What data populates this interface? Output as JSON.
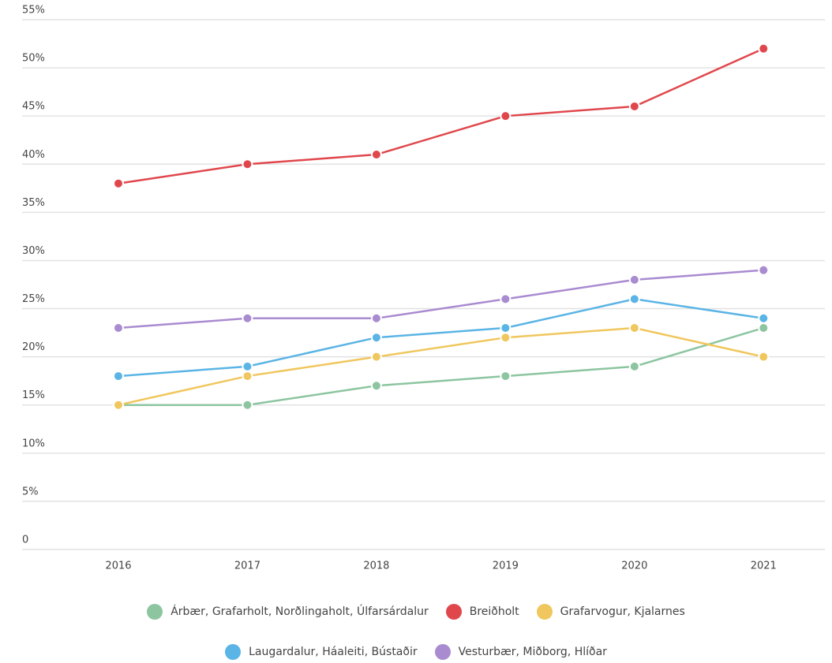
{
  "chart_data": {
    "type": "line",
    "categories": [
      "2016",
      "2017",
      "2018",
      "2019",
      "2020",
      "2021"
    ],
    "series": [
      {
        "name": "Árbær, Grafarholt, Norðlingaholt, Úlfarsárdalur",
        "color": "#8cc5a0",
        "values": [
          15,
          15,
          17,
          18,
          19,
          23
        ]
      },
      {
        "name": "Breiðholt",
        "color": "#e0474c",
        "values": [
          38,
          40,
          41,
          45,
          46,
          52
        ]
      },
      {
        "name": "Grafarvogur, Kjalarnes",
        "color": "#f0c75e",
        "values": [
          15,
          18,
          20,
          22,
          23,
          20
        ]
      },
      {
        "name": "Laugardalur, Háaleiti, Bústaðir",
        "color": "#5ab4e5",
        "values": [
          18,
          19,
          22,
          23,
          26,
          24
        ]
      },
      {
        "name": "Vesturbær, Miðborg, Hlíðar",
        "color": "#a98bd0",
        "values": [
          23,
          24,
          24,
          26,
          28,
          29
        ]
      }
    ],
    "ylim": [
      0,
      55
    ],
    "yticks": [
      0,
      {
        "value": 5,
        "label": "5%"
      },
      {
        "value": 10,
        "label": "10%"
      },
      {
        "value": 15,
        "label": "15%"
      },
      {
        "value": 20,
        "label": "20%"
      },
      {
        "value": 25,
        "label": "25%"
      },
      {
        "value": 30,
        "label": "30%"
      },
      {
        "value": 35,
        "label": "35%"
      },
      {
        "value": 40,
        "label": "40%"
      },
      {
        "value": 45,
        "label": "45%"
      },
      {
        "value": 50,
        "label": "50%"
      },
      {
        "value": 55,
        "label": "55%"
      }
    ],
    "grid": true
  }
}
